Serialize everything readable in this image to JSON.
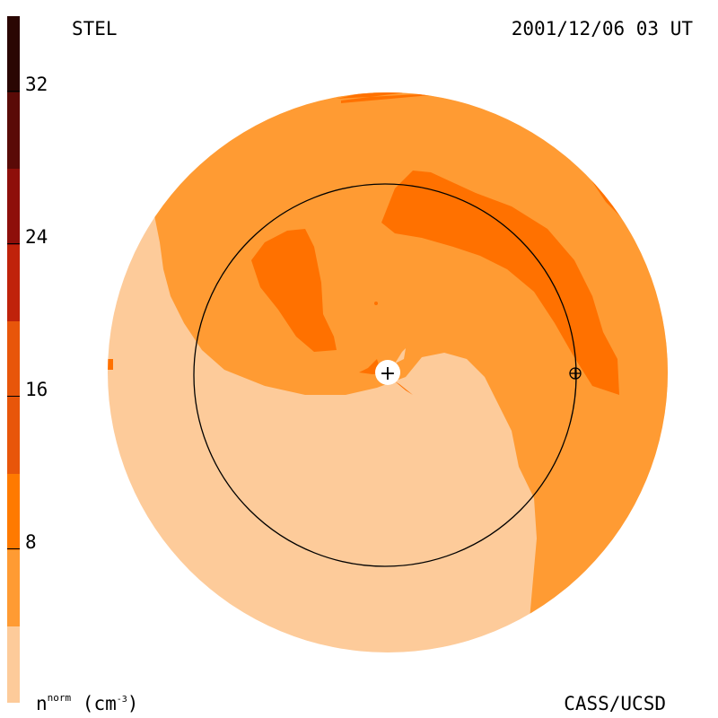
{
  "header": {
    "source": "STEL",
    "timestamp": "2001/12/06 03 UT"
  },
  "footer": {
    "credit": "CASS/UCSD",
    "unit_base": "n",
    "unit_sup": "norm",
    "unit_open": " (cm",
    "unit_exp": "-3",
    "unit_close": ")"
  },
  "colorbar": {
    "ticks": [
      "32",
      "24",
      "16",
      "8"
    ],
    "bands": [
      {
        "color": "#2a0603"
      },
      {
        "color": "#5a0a07"
      },
      {
        "color": "#8e0f0a"
      },
      {
        "color": "#c0220b"
      },
      {
        "color": "#e8560a"
      },
      {
        "color": "#ff7a00"
      },
      {
        "color": "#ff9b33"
      },
      {
        "color": "#fdcb9a"
      }
    ]
  },
  "map": {
    "colors": {
      "disk_background": "#fdcb9a",
      "medium_density": "#ff9b33",
      "high_density": "#ff7100",
      "circle": "#000000",
      "sun_marker": "#ffffff"
    },
    "markers": {
      "sun": "+",
      "earth": "earth-symbol"
    }
  }
}
